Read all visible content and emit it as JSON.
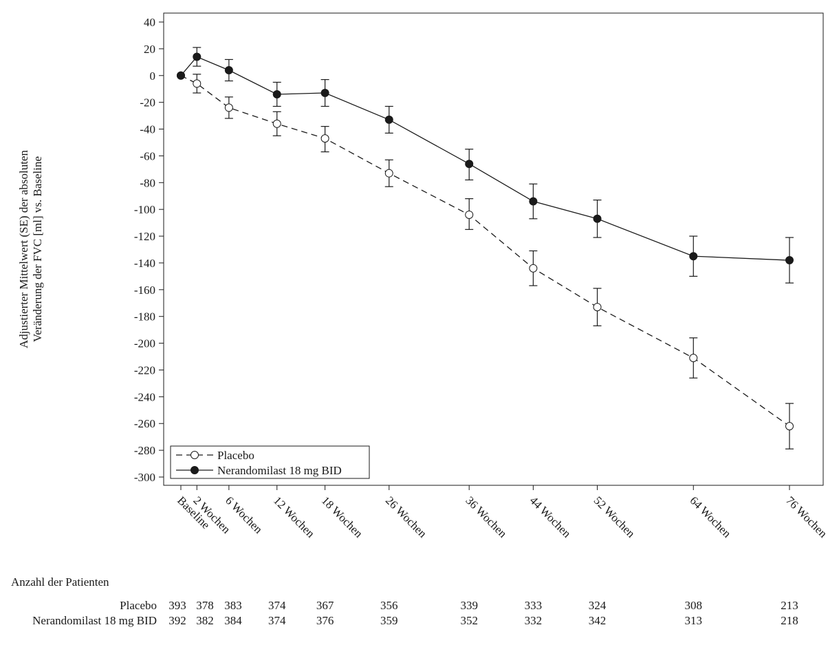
{
  "chart_data": {
    "type": "line",
    "ylabel_line1": "Adjustierter Mittelwert (SE) der absoluten",
    "ylabel_line2": "Veränderung der FVC [ml] vs. Baseline",
    "xlabel": "",
    "ylim": [
      -300,
      40
    ],
    "yticks": [
      40,
      20,
      0,
      -20,
      -40,
      -60,
      -80,
      -100,
      -120,
      -140,
      -160,
      -180,
      -200,
      -220,
      -240,
      -260,
      -280,
      -300
    ],
    "x_weeks": [
      0,
      2,
      6,
      12,
      18,
      26,
      36,
      44,
      52,
      64,
      76
    ],
    "x_tick_labels": [
      "Baseline",
      "2 Wochen",
      "6 Wochen",
      "12 Wochen",
      "18 Wochen",
      "26 Wochen",
      "36 Wochen",
      "44 Wochen",
      "52 Wochen",
      "64 Wochen",
      "76 Wochen"
    ],
    "grid": false,
    "legend_position": "bottom-left",
    "series": [
      {
        "name": "Placebo",
        "style": "dashed-open-circle",
        "color": "#1a1a1a",
        "values": [
          0,
          -6,
          -24,
          -36,
          -47,
          -73,
          -104,
          -144,
          -173,
          -211,
          -262
        ],
        "se_low": [
          0,
          -13,
          -32,
          -45,
          -57,
          -83,
          -115,
          -157,
          -187,
          -226,
          -279
        ],
        "se_high": [
          0,
          1,
          -16,
          -27,
          -38,
          -63,
          -92,
          -131,
          -159,
          -196,
          -245
        ]
      },
      {
        "name": "Nerandomilast 18 mg BID",
        "style": "solid-filled-circle",
        "color": "#1a1a1a",
        "values": [
          0,
          14,
          4,
          -14,
          -13,
          -33,
          -66,
          -94,
          -107,
          -135,
          -138
        ],
        "se_low": [
          0,
          7,
          -4,
          -23,
          -23,
          -43,
          -78,
          -107,
          -121,
          -150,
          -155
        ],
        "se_high": [
          0,
          21,
          12,
          -5,
          -3,
          -23,
          -55,
          -81,
          -93,
          -120,
          -121
        ]
      }
    ]
  },
  "risk_table": {
    "title": "Anzahl der Patienten",
    "rows": [
      {
        "label": "Placebo",
        "counts": [
          "393",
          "378",
          "383",
          "374",
          "367",
          "356",
          "339",
          "333",
          "324",
          "308",
          "213"
        ]
      },
      {
        "label": "Nerandomilast 18 mg BID",
        "counts": [
          "392",
          "382",
          "384",
          "374",
          "376",
          "359",
          "352",
          "332",
          "342",
          "313",
          "218"
        ]
      }
    ]
  }
}
